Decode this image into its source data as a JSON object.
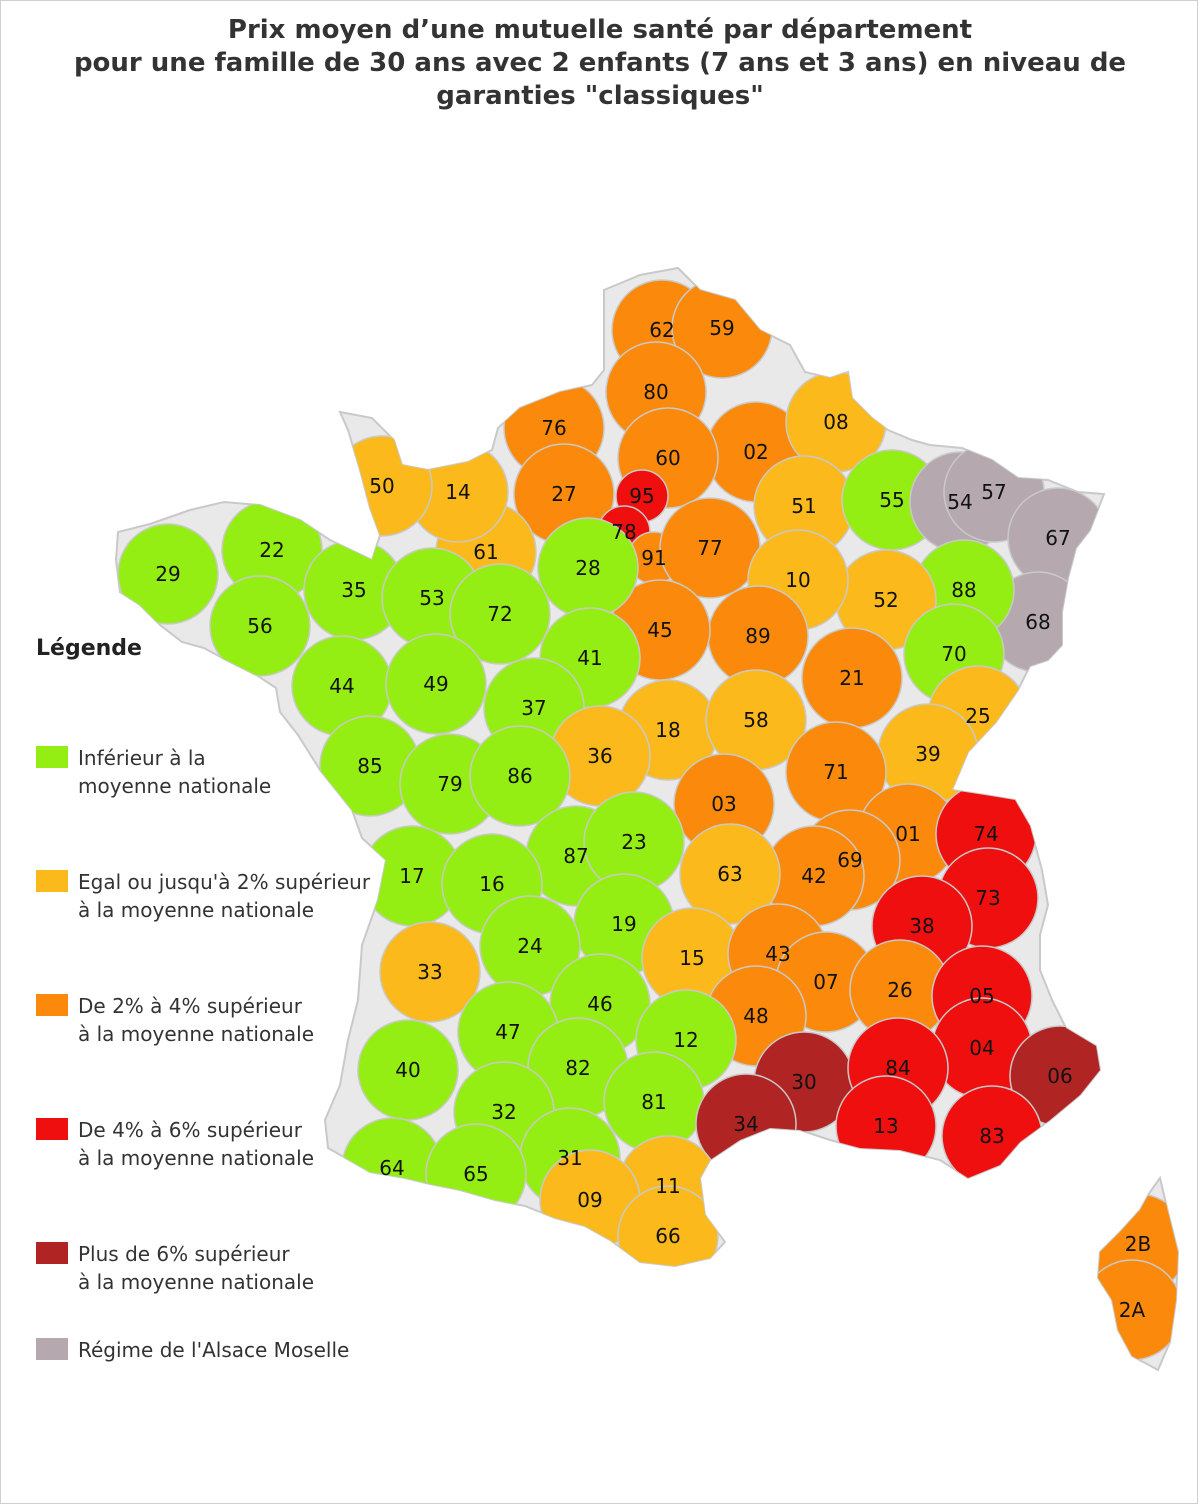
{
  "title": {
    "line1": "Prix moyen d’une mutuelle santé par département",
    "line2": "pour une famille de 30 ans avec 2 enfants (7 ans et 3 ans) en niveau de",
    "line3": "garanties \"classiques\""
  },
  "legend": {
    "title": "Légende",
    "items": [
      {
        "line1": "Inférieur à la",
        "line2": "moyenne nationale",
        "color": "#94ee13"
      },
      {
        "line1": "Egal ou jusqu'à 2% supérieur",
        "line2": "à la moyenne nationale",
        "color": "#fbb91c"
      },
      {
        "line1": "De 2% à 4% supérieur",
        "line2": "à la moyenne nationale",
        "color": "#fb8a0c"
      },
      {
        "line1": "De 4% à 6% supérieur",
        "line2": "à la moyenne nationale",
        "color": "#ef0f0f"
      },
      {
        "line1": "Plus de 6% supérieur",
        "line2": "à la moyenne nationale",
        "color": "#b02424"
      },
      {
        "line1": "Régime de l'Alsace Moselle",
        "line2": "",
        "color": "#b5a9af"
      }
    ]
  },
  "departments": [
    {
      "code": "62",
      "cat": 2
    },
    {
      "code": "59",
      "cat": 2
    },
    {
      "code": "80",
      "cat": 2
    },
    {
      "code": "76",
      "cat": 2
    },
    {
      "code": "02",
      "cat": 2
    },
    {
      "code": "08",
      "cat": 1
    },
    {
      "code": "60",
      "cat": 2
    },
    {
      "code": "27",
      "cat": 2
    },
    {
      "code": "95",
      "cat": 3
    },
    {
      "code": "78",
      "cat": 3
    },
    {
      "code": "91",
      "cat": 2
    },
    {
      "code": "77",
      "cat": 2
    },
    {
      "code": "51",
      "cat": 1
    },
    {
      "code": "55",
      "cat": 0
    },
    {
      "code": "54",
      "cat": 5
    },
    {
      "code": "57",
      "cat": 5
    },
    {
      "code": "67",
      "cat": 5
    },
    {
      "code": "68",
      "cat": 5
    },
    {
      "code": "88",
      "cat": 0
    },
    {
      "code": "52",
      "cat": 1
    },
    {
      "code": "10",
      "cat": 1
    },
    {
      "code": "70",
      "cat": 0
    },
    {
      "code": "25",
      "cat": 1
    },
    {
      "code": "39",
      "cat": 1
    },
    {
      "code": "21",
      "cat": 2
    },
    {
      "code": "89",
      "cat": 2
    },
    {
      "code": "45",
      "cat": 2
    },
    {
      "code": "28",
      "cat": 0
    },
    {
      "code": "61",
      "cat": 1
    },
    {
      "code": "14",
      "cat": 1
    },
    {
      "code": "50",
      "cat": 1
    },
    {
      "code": "22",
      "cat": 0
    },
    {
      "code": "29",
      "cat": 0
    },
    {
      "code": "56",
      "cat": 0
    },
    {
      "code": "35",
      "cat": 0
    },
    {
      "code": "53",
      "cat": 0
    },
    {
      "code": "72",
      "cat": 0
    },
    {
      "code": "41",
      "cat": 0
    },
    {
      "code": "44",
      "cat": 0
    },
    {
      "code": "49",
      "cat": 0
    },
    {
      "code": "37",
      "cat": 0
    },
    {
      "code": "18",
      "cat": 1
    },
    {
      "code": "58",
      "cat": 1
    },
    {
      "code": "36",
      "cat": 1
    },
    {
      "code": "71",
      "cat": 2
    },
    {
      "code": "03",
      "cat": 2
    },
    {
      "code": "85",
      "cat": 0
    },
    {
      "code": "79",
      "cat": 0
    },
    {
      "code": "86",
      "cat": 0
    },
    {
      "code": "01",
      "cat": 2
    },
    {
      "code": "74",
      "cat": 3
    },
    {
      "code": "69",
      "cat": 2
    },
    {
      "code": "42",
      "cat": 2
    },
    {
      "code": "63",
      "cat": 1
    },
    {
      "code": "87",
      "cat": 0
    },
    {
      "code": "23",
      "cat": 0
    },
    {
      "code": "17",
      "cat": 0
    },
    {
      "code": "16",
      "cat": 0
    },
    {
      "code": "73",
      "cat": 3
    },
    {
      "code": "38",
      "cat": 3
    },
    {
      "code": "19",
      "cat": 0
    },
    {
      "code": "24",
      "cat": 0
    },
    {
      "code": "15",
      "cat": 1
    },
    {
      "code": "43",
      "cat": 2
    },
    {
      "code": "33",
      "cat": 1
    },
    {
      "code": "07",
      "cat": 2
    },
    {
      "code": "26",
      "cat": 2
    },
    {
      "code": "05",
      "cat": 3
    },
    {
      "code": "46",
      "cat": 0
    },
    {
      "code": "48",
      "cat": 2
    },
    {
      "code": "47",
      "cat": 0
    },
    {
      "code": "12",
      "cat": 0
    },
    {
      "code": "04",
      "cat": 3
    },
    {
      "code": "06",
      "cat": 4
    },
    {
      "code": "82",
      "cat": 0
    },
    {
      "code": "30",
      "cat": 4
    },
    {
      "code": "84",
      "cat": 3
    },
    {
      "code": "40",
      "cat": 0
    },
    {
      "code": "81",
      "cat": 0
    },
    {
      "code": "32",
      "cat": 0
    },
    {
      "code": "34",
      "cat": 4
    },
    {
      "code": "13",
      "cat": 3
    },
    {
      "code": "83",
      "cat": 3
    },
    {
      "code": "31",
      "cat": 0
    },
    {
      "code": "64",
      "cat": 0
    },
    {
      "code": "65",
      "cat": 0
    },
    {
      "code": "11",
      "cat": 1
    },
    {
      "code": "09",
      "cat": 1
    },
    {
      "code": "66",
      "cat": 1
    },
    {
      "code": "2B",
      "cat": 2
    },
    {
      "code": "2A",
      "cat": 2
    }
  ]
}
